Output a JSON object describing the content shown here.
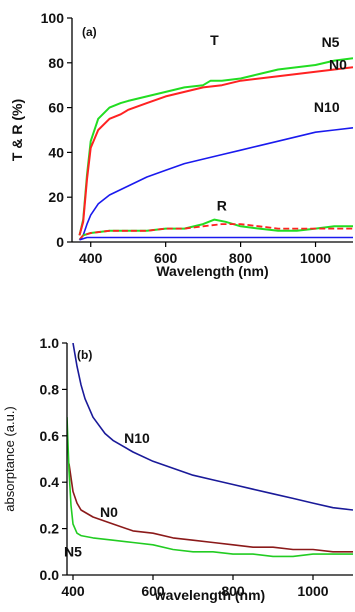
{
  "chart_data": [
    {
      "type": "line",
      "panel_label": "(a)",
      "xlabel": "Wavelength (nm)",
      "ylabel": "T & R (%)",
      "xlim": [
        350,
        1100
      ],
      "ylim": [
        0,
        100
      ],
      "xticks": [
        400,
        600,
        800,
        1000
      ],
      "yticks": [
        0,
        20,
        40,
        60,
        80,
        100
      ],
      "grid": false,
      "annotations": [
        {
          "text": "T",
          "x": 730,
          "y": 88
        },
        {
          "text": "R",
          "x": 750,
          "y": 14
        },
        {
          "text": "N5",
          "x": 1040,
          "y": 87
        },
        {
          "text": "N0",
          "x": 1060,
          "y": 77
        },
        {
          "text": "N10",
          "x": 1030,
          "y": 58
        }
      ],
      "series": [
        {
          "name": "N5",
          "color": "#22dd22",
          "width": 2,
          "x": [
            370,
            380,
            390,
            400,
            420,
            450,
            480,
            500,
            550,
            600,
            650,
            700,
            720,
            750,
            800,
            850,
            900,
            950,
            1000,
            1050,
            1100
          ],
          "y": [
            3,
            10,
            30,
            45,
            55,
            60,
            62,
            63,
            65,
            67,
            69,
            70,
            72,
            72,
            73,
            75,
            77,
            78,
            79,
            81,
            82
          ]
        },
        {
          "name": "N0",
          "color": "#ff2222",
          "width": 2,
          "x": [
            370,
            380,
            390,
            400,
            420,
            450,
            480,
            500,
            550,
            600,
            650,
            700,
            750,
            800,
            850,
            900,
            950,
            1000,
            1050,
            1100
          ],
          "y": [
            3,
            9,
            28,
            42,
            50,
            55,
            57,
            59,
            62,
            65,
            67,
            69,
            70,
            72,
            73,
            74,
            75,
            76,
            77,
            78
          ]
        },
        {
          "name": "N10",
          "color": "#1a1aee",
          "width": 1.6,
          "x": [
            370,
            380,
            390,
            400,
            420,
            450,
            500,
            550,
            600,
            650,
            700,
            750,
            800,
            850,
            900,
            950,
            1000,
            1050,
            1100
          ],
          "y": [
            1,
            3,
            8,
            12,
            17,
            21,
            25,
            29,
            32,
            35,
            37,
            39,
            41,
            43,
            45,
            47,
            49,
            50,
            51
          ]
        },
        {
          "name": "R-N5",
          "color": "#22dd22",
          "width": 2,
          "x": [
            370,
            380,
            400,
            450,
            500,
            550,
            600,
            650,
            700,
            730,
            760,
            800,
            850,
            900,
            950,
            1000,
            1050,
            1100
          ],
          "y": [
            1,
            3,
            4,
            5,
            5,
            5,
            6,
            6,
            8,
            10,
            9,
            7,
            6,
            5,
            5,
            6,
            7,
            7
          ]
        },
        {
          "name": "R-N0",
          "color": "#ff2222",
          "width": 1.8,
          "dash": "6,3",
          "x": [
            370,
            380,
            400,
            450,
            500,
            550,
            600,
            650,
            700,
            750,
            800,
            850,
            900,
            950,
            1000,
            1050,
            1100
          ],
          "y": [
            1,
            3,
            4,
            5,
            5,
            5,
            6,
            6,
            7,
            8,
            8,
            7,
            6,
            6,
            6,
            6,
            6
          ]
        },
        {
          "name": "R-N10",
          "color": "#1a1aee",
          "width": 1.6,
          "x": [
            370,
            390,
            400,
            500,
            600,
            700,
            800,
            900,
            1000,
            1100
          ],
          "y": [
            1,
            2,
            2,
            2,
            2,
            2,
            2,
            2,
            2,
            2
          ]
        }
      ]
    },
    {
      "type": "line",
      "panel_label": "(b)",
      "xlabel": "wavelength (nm)",
      "ylabel": "absorptance (a.u.)",
      "xlim": [
        385,
        1100
      ],
      "ylim": [
        0,
        1.0
      ],
      "xticks": [
        400,
        600,
        800,
        1000
      ],
      "yticks": [
        0.0,
        0.2,
        0.4,
        0.6,
        0.8,
        1.0
      ],
      "ytick_labels": [
        "0.0",
        "0.2",
        "0.4",
        "0.6",
        "0.8",
        "1.0"
      ],
      "grid": false,
      "annotations": [
        {
          "text": "N10",
          "x": 560,
          "y": 0.57
        },
        {
          "text": "N0",
          "x": 490,
          "y": 0.25
        },
        {
          "text": "N5",
          "x": 400,
          "y": 0.08
        }
      ],
      "series": [
        {
          "name": "N10",
          "color": "#1a1a99",
          "width": 1.6,
          "x": [
            400,
            410,
            420,
            430,
            450,
            480,
            500,
            550,
            600,
            650,
            700,
            750,
            800,
            850,
            900,
            950,
            1000,
            1050,
            1100
          ],
          "y": [
            1.0,
            0.9,
            0.82,
            0.76,
            0.68,
            0.61,
            0.58,
            0.53,
            0.49,
            0.46,
            0.43,
            0.41,
            0.39,
            0.37,
            0.35,
            0.33,
            0.31,
            0.29,
            0.28
          ]
        },
        {
          "name": "N0",
          "color": "#8b1a1a",
          "width": 1.6,
          "x": [
            390,
            395,
            400,
            410,
            420,
            450,
            500,
            550,
            600,
            650,
            700,
            750,
            800,
            850,
            900,
            950,
            1000,
            1050,
            1100
          ],
          "y": [
            0.48,
            0.42,
            0.36,
            0.31,
            0.28,
            0.25,
            0.22,
            0.19,
            0.18,
            0.16,
            0.15,
            0.14,
            0.13,
            0.12,
            0.12,
            0.11,
            0.11,
            0.1,
            0.1
          ]
        },
        {
          "name": "N5",
          "color": "#22cc22",
          "width": 1.6,
          "x": [
            385,
            390,
            395,
            400,
            410,
            420,
            450,
            500,
            550,
            600,
            650,
            700,
            750,
            800,
            850,
            900,
            950,
            1000,
            1050,
            1100
          ],
          "y": [
            0.68,
            0.45,
            0.3,
            0.22,
            0.18,
            0.17,
            0.16,
            0.15,
            0.14,
            0.13,
            0.11,
            0.1,
            0.1,
            0.09,
            0.09,
            0.08,
            0.08,
            0.09,
            0.09,
            0.09
          ]
        }
      ]
    }
  ]
}
